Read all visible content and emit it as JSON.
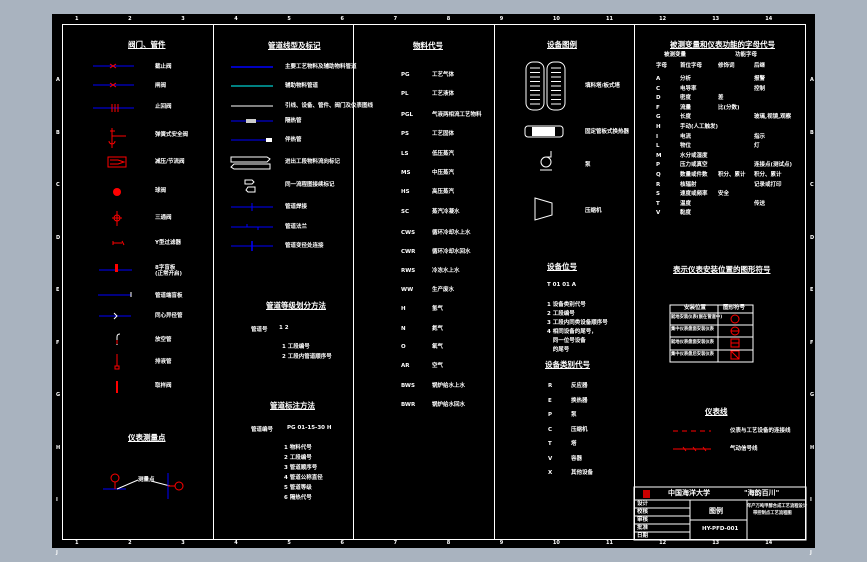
{
  "colors": {
    "background": "#000000",
    "text": "#ffffff",
    "pipe": "#0000ff",
    "symbol": "#ff0000",
    "aux_pipe": "#00ffff"
  },
  "grid": {
    "columns": [
      "1",
      "2",
      "3",
      "4",
      "5",
      "6",
      "7",
      "8",
      "9",
      "10",
      "11",
      "12",
      "13",
      "14"
    ],
    "rows": [
      "A",
      "B",
      "C",
      "D",
      "E",
      "F",
      "G",
      "H",
      "I",
      "J"
    ]
  },
  "valves": {
    "title": "阀门、管件",
    "items": [
      "截止阀",
      "闸阀",
      "止回阀",
      "弹簧式安全阀",
      "减压/节流阀",
      "球阀",
      "三通阀",
      "Y型过滤器",
      "8字盲板\n(正常开启)",
      "管道端盲板",
      "同心异径管",
      "放空管",
      "排液管",
      "取样阀"
    ]
  },
  "instrument_point": {
    "title": "仪表测量点",
    "label": "测量点"
  },
  "pipelines": {
    "title": "管道线型及标记",
    "items": [
      "主要工艺物料及辅助物料管道",
      "辅助物料管道",
      "引线、设备、管件、阀门及仪表图线",
      "隔热管",
      "伴热管",
      "进出工段物料流向标记",
      "同一流程图接续标记",
      "管道焊接",
      "管道法兰",
      "管道变径处连接"
    ]
  },
  "pipe_grade": {
    "title": "管道等级划分方法",
    "code_label": "管道号",
    "code": "1  2",
    "notes": [
      "1 工段编号",
      "2 工段内管道顺序号"
    ]
  },
  "pipe_marking": {
    "title": "管道标注方法",
    "code_label": "管道编号",
    "code": "PG 01-15-30  H",
    "notes": [
      "1 物料代号",
      "2 工段编号",
      "3 管道顺序号",
      "4 管道公称直径",
      "5 管道等级",
      "6 隔热代号"
    ]
  },
  "materials": {
    "title": "物料代号",
    "items": [
      {
        "code": "PG",
        "name": "工艺气体"
      },
      {
        "code": "PL",
        "name": "工艺液体"
      },
      {
        "code": "PGL",
        "name": "气液两相流工艺物料"
      },
      {
        "code": "PS",
        "name": "工艺固体"
      },
      {
        "code": "LS",
        "name": "低压蒸汽"
      },
      {
        "code": "MS",
        "name": "中压蒸汽"
      },
      {
        "code": "HS",
        "name": "高压蒸汽"
      },
      {
        "code": "SC",
        "name": "蒸汽冷凝水"
      },
      {
        "code": "CWS",
        "name": "循环冷却水上水"
      },
      {
        "code": "CWR",
        "name": "循环冷却水回水"
      },
      {
        "code": "RWS",
        "name": "冷冻水上水"
      },
      {
        "code": "WW",
        "name": "生产废水"
      },
      {
        "code": "H",
        "name": "氢气"
      },
      {
        "code": "N",
        "name": "氮气"
      },
      {
        "code": "O",
        "name": "氧气"
      },
      {
        "code": "AR",
        "name": "空气"
      },
      {
        "code": "BWS",
        "name": "锅炉给水上水"
      },
      {
        "code": "BWR",
        "name": "锅炉给水回水"
      }
    ]
  },
  "equipment": {
    "title": "设备图例",
    "items": [
      "填料塔/板式塔",
      "固定管板式换热器",
      "泵",
      "压缩机"
    ]
  },
  "equipment_tag": {
    "title": "设备位号",
    "code": "T 01 01 A",
    "notes": [
      "1 设备类别代号",
      "2 工段编号",
      "3 工段内同类设备顺序号",
      "4 相同设备的尾号，",
      "   同一位号设备",
      "   的尾号"
    ]
  },
  "equipment_class": {
    "title": "设备类别代号",
    "items": [
      {
        "code": "R",
        "name": "反应器"
      },
      {
        "code": "E",
        "name": "换热器"
      },
      {
        "code": "P",
        "name": "泵"
      },
      {
        "code": "C",
        "name": "压缩机"
      },
      {
        "code": "T",
        "name": "塔"
      },
      {
        "code": "V",
        "name": "容器"
      },
      {
        "code": "X",
        "name": "其他设备"
      }
    ]
  },
  "letter_codes": {
    "title": "被测变量和仪表功能的字母代号",
    "group1": "被测变量",
    "group2": "功能字母",
    "headers": [
      "字母",
      "首位字母",
      "修饰词",
      "后继"
    ],
    "rows": [
      [
        "A",
        "分析",
        "",
        "报警"
      ],
      [
        "C",
        "电导率",
        "",
        "控制"
      ],
      [
        "D",
        "密度",
        "差",
        ""
      ],
      [
        "F",
        "流量",
        "比(分数)",
        ""
      ],
      [
        "G",
        "长度",
        "",
        "玻璃,视镜,观察"
      ],
      [
        "H",
        "手动(人工触发)",
        "",
        ""
      ],
      [
        "I",
        "电流",
        "",
        "指示"
      ],
      [
        "L",
        "物位",
        "",
        "灯"
      ],
      [
        "M",
        "水分或湿度",
        "",
        ""
      ],
      [
        "P",
        "压力或真空",
        "",
        "连接点(测试点)"
      ],
      [
        "Q",
        "数量或件数",
        "积分、累计",
        "积分、累计"
      ],
      [
        "R",
        "核辐射",
        "",
        "记录或打印"
      ],
      [
        "S",
        "速度或频率",
        "安全",
        ""
      ],
      [
        "T",
        "温度",
        "",
        "传送"
      ],
      [
        "V",
        "黏度",
        "",
        ""
      ]
    ]
  },
  "install_symbols": {
    "title": "表示仪表安装位置的图形符号",
    "headers": [
      "安装位置",
      "图形符号"
    ],
    "rows": [
      "就地安装仪表(嵌在管道中)",
      "集中仪表盘面安装仪表",
      "就地仪表盘面安装仪表",
      "集中仪表盘后安装仪表"
    ]
  },
  "instrument_lines": {
    "title": "仪表线",
    "items": [
      "仪表与工艺设备的连接线",
      "气动信号线"
    ]
  },
  "title_block": {
    "school": "中国海洋大学",
    "project": "\"海韵百川\"",
    "drawing": "图例",
    "number": "HY-PFD-001",
    "right_title": "年产万吨甲醇合成工艺流程设计",
    "right_sub": "带控制点工艺流程图",
    "rows": [
      "设计",
      "校核",
      "审核",
      "批准",
      "日期"
    ]
  }
}
